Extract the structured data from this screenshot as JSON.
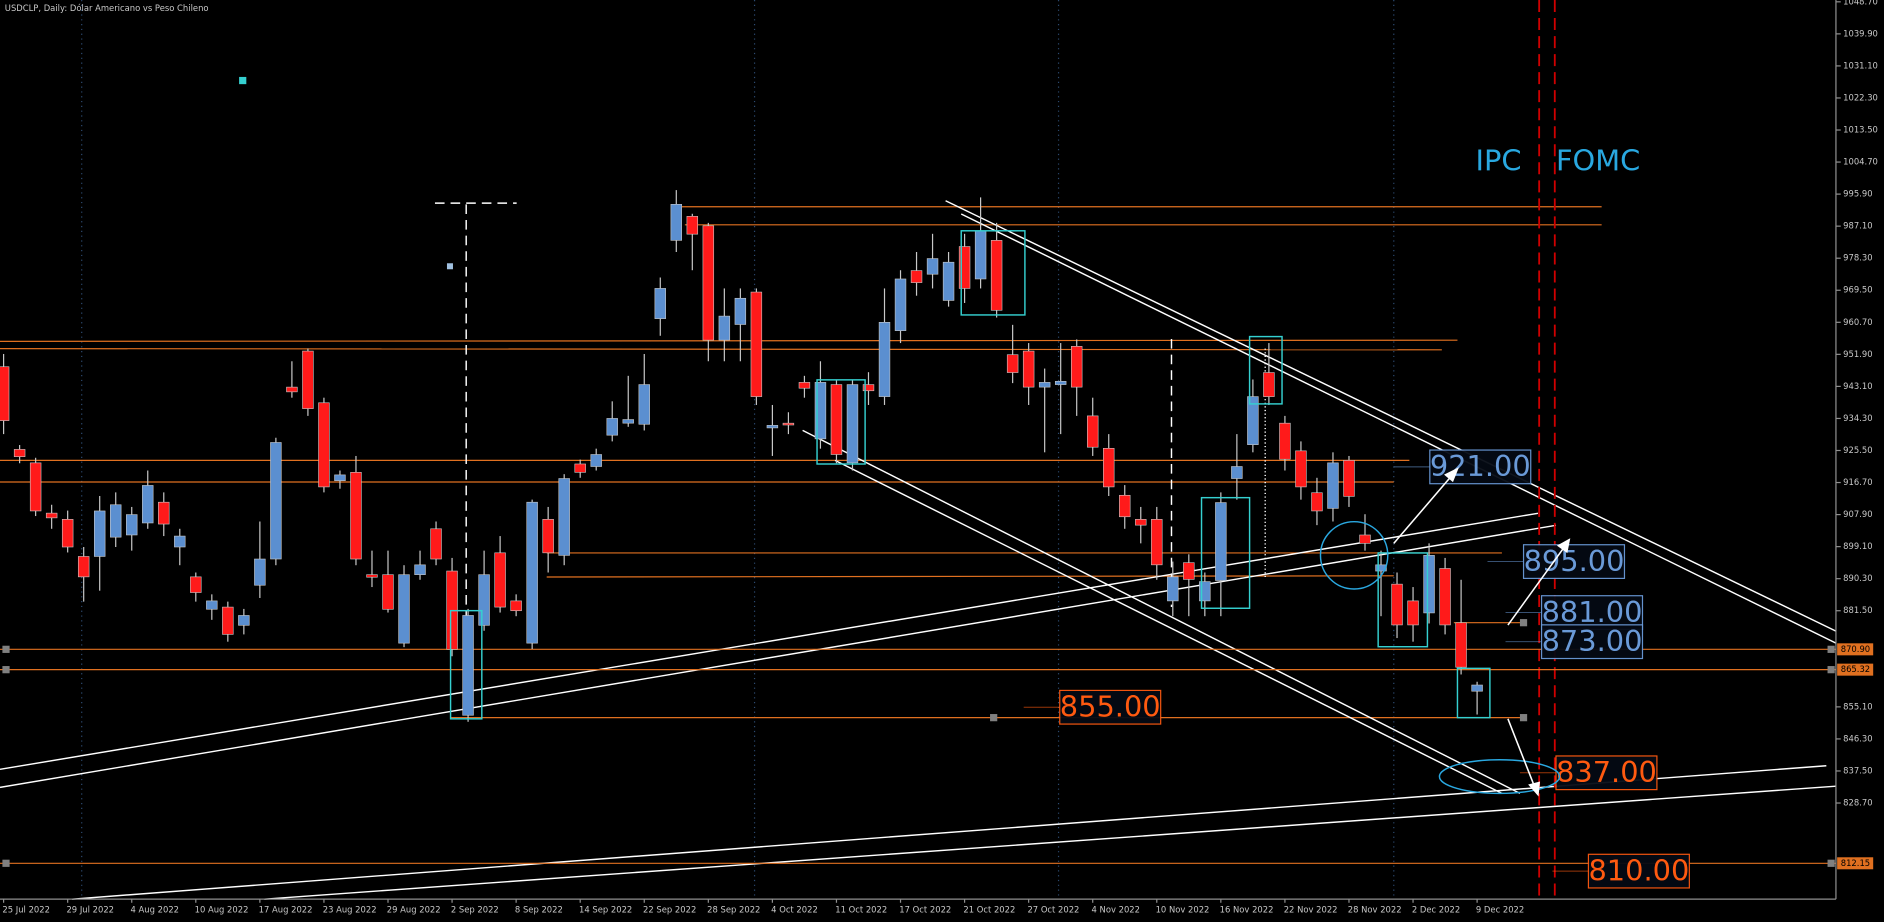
{
  "chart_data": {
    "type": "candlestick",
    "title": "USDCLP, Daily:  Dólar Americano vs Peso Chileno",
    "categories": [
      "25 Jul 2022",
      null,
      null,
      null,
      "29 Jul 2022",
      null,
      null,
      null,
      "4 Aug 2022",
      null,
      null,
      null,
      "10 Aug 2022",
      null,
      null,
      null,
      "17 Aug 2022",
      null,
      null,
      null,
      "23 Aug 2022",
      null,
      null,
      null,
      "29 Aug 2022",
      null,
      null,
      null,
      "2 Sep 2022",
      null,
      null,
      null,
      "8 Sep 2022",
      null,
      null,
      null,
      "14 Sep 2022",
      null,
      null,
      null,
      "22 Sep 2022",
      null,
      null,
      null,
      "28 Sep 2022",
      null,
      null,
      null,
      "4 Oct 2022",
      null,
      null,
      null,
      "11 Oct 2022",
      null,
      null,
      null,
      "17 Oct 2022",
      null,
      null,
      null,
      "21 Oct 2022",
      null,
      null,
      null,
      "27 Oct 2022",
      null,
      null,
      null,
      "4 Nov 2022",
      null,
      null,
      null,
      "10 Nov 2022",
      null,
      null,
      null,
      "16 Nov 2022",
      null,
      null,
      null,
      "22 Nov 2022",
      null,
      null,
      null,
      "28 Nov 2022",
      null,
      null,
      null,
      "2 Dec 2022",
      null,
      null,
      null,
      "9 Dec 2022"
    ],
    "open": [
      948.5,
      925.8,
      922.1,
      908.3,
      906.6,
      896.4,
      896.4,
      901.7,
      902.3,
      905.6,
      911.3,
      899.0,
      890.8,
      881.9,
      882.5,
      877.5,
      888.5,
      895.7,
      942.9,
      952.8,
      938.6,
      917.2,
      919.5,
      891.4,
      891.4,
      872.6,
      891.4,
      904.0,
      892.4,
      852.8,
      877.5,
      897.4,
      884.2,
      872.6,
      906.6,
      896.7,
      921.8,
      921.1,
      929.7,
      933.0,
      932.7,
      961.7,
      983.2,
      989.8,
      987.2,
      955.8,
      960.1,
      969.0,
      931.7,
      933.0,
      944.2,
      928.7,
      943.6,
      922.1,
      943.6,
      940.3,
      958.4,
      974.9,
      973.9,
      966.7,
      981.5,
      972.6,
      983.2,
      951.8,
      952.8,
      942.9,
      943.6,
      954.1,
      935.0,
      926.1,
      913.2,
      906.6,
      906.6,
      884.2,
      894.7,
      884.2,
      889.8,
      917.8,
      927.1,
      946.9,
      933.0,
      925.4,
      913.9,
      909.6,
      922.8,
      902.3,
      892.4,
      888.8,
      884.2,
      880.9,
      893.1,
      878.2,
      859.4
    ],
    "high": [
      952,
      927,
      923.5,
      910.6,
      909,
      899,
      913,
      914,
      910,
      920,
      914,
      904,
      892,
      886,
      884,
      882,
      906,
      929,
      950,
      953.5,
      940,
      920,
      924,
      898,
      898,
      894,
      898,
      906,
      896,
      882,
      898,
      902,
      886,
      912,
      910,
      919,
      923,
      926,
      939,
      946,
      952,
      973,
      997,
      990.5,
      988,
      970,
      970,
      970,
      938,
      936,
      946,
      950,
      945,
      945,
      947,
      970,
      975,
      980,
      985,
      980,
      985,
      995,
      988,
      960,
      955,
      948,
      955,
      956,
      940,
      930,
      916,
      910,
      910,
      895,
      897,
      892,
      914,
      930,
      945,
      955,
      935,
      928,
      918,
      925,
      924,
      908,
      898,
      892,
      888,
      900,
      896,
      890,
      862
    ],
    "low": [
      930,
      922,
      907.5,
      904,
      897.5,
      884,
      887,
      899,
      898,
      904,
      902,
      894,
      884,
      879,
      873,
      875,
      885,
      894,
      940,
      935,
      914,
      915,
      894,
      888,
      881,
      871.5,
      890,
      894,
      869,
      851,
      876,
      881,
      880,
      871,
      892,
      894,
      918,
      920,
      928,
      932,
      931,
      957,
      980,
      975,
      950,
      950,
      950,
      938,
      924,
      930,
      940,
      926,
      922,
      920,
      938,
      938,
      955,
      968,
      970,
      965,
      966,
      970,
      962,
      944,
      938,
      925,
      930,
      935,
      924,
      913,
      904,
      900,
      890,
      880,
      880,
      880,
      880,
      912,
      925,
      938,
      920,
      912,
      905,
      906,
      910,
      898,
      880,
      874,
      873,
      878,
      875,
      864,
      853
    ],
    "close": [
      933.7,
      923.8,
      908.9,
      907.0,
      899.0,
      890.8,
      908.9,
      910.6,
      907.9,
      915.9,
      905.3,
      902.0,
      886.5,
      884.2,
      875.0,
      880.2,
      895.7,
      927.7,
      941.6,
      937.0,
      915.5,
      918.8,
      895.7,
      890.7,
      881.9,
      891.4,
      894.1,
      895.7,
      870.9,
      880.2,
      891.4,
      882.5,
      881.5,
      911.3,
      897.4,
      917.8,
      919.5,
      924.4,
      934.3,
      934.0,
      943.6,
      970.0,
      993.1,
      984.9,
      955.8,
      962.4,
      967.3,
      940.3,
      932.4,
      932.5,
      942.6,
      944.2,
      924.4,
      943.6,
      941.9,
      960.7,
      972.6,
      971.6,
      978.2,
      977.2,
      970.0,
      985.8,
      964.0,
      946.9,
      942.9,
      944.2,
      944.5,
      942.9,
      926.4,
      915.5,
      907.3,
      905.0,
      894.1,
      890.8,
      890.1,
      889.5,
      911.2,
      921.1,
      940.3,
      940.3,
      923.1,
      915.5,
      908.9,
      922.1,
      912.9,
      900.0,
      894.1,
      877.6,
      877.6,
      896.7,
      877.6,
      866.0,
      861.1
    ],
    "up_color": "#5b8fd0",
    "down_color": "#ff1a1a",
    "ylim": [
      802.3,
      1049.2
    ],
    "yticks": [
      {
        "value": 1048.7,
        "label": "1048.70"
      },
      {
        "value": 1039.9,
        "label": "1039.90"
      },
      {
        "value": 1031.1,
        "label": "1031.10"
      },
      {
        "value": 1022.3,
        "label": "1022.30"
      },
      {
        "value": 1013.5,
        "label": "1013.50"
      },
      {
        "value": 1004.7,
        "label": "1004.70"
      },
      {
        "value": 995.9,
        "label": "995.90"
      },
      {
        "value": 987.1,
        "label": "987.10"
      },
      {
        "value": 978.3,
        "label": "978.30"
      },
      {
        "value": 969.5,
        "label": "969.50"
      },
      {
        "value": 960.7,
        "label": "960.70"
      },
      {
        "value": 951.9,
        "label": "951.90"
      },
      {
        "value": 943.1,
        "label": "943.10"
      },
      {
        "value": 934.3,
        "label": "934.30"
      },
      {
        "value": 925.5,
        "label": "925.50"
      },
      {
        "value": 916.7,
        "label": "916.70"
      },
      {
        "value": 907.9,
        "label": "907.90"
      },
      {
        "value": 899.1,
        "label": "899.10"
      },
      {
        "value": 890.3,
        "label": "890.30"
      },
      {
        "value": 881.5,
        "label": "881.50"
      },
      {
        "value": 855.1,
        "label": "855.10"
      },
      {
        "value": 846.3,
        "label": "846.30"
      },
      {
        "value": 837.5,
        "label": "837.50"
      },
      {
        "value": 828.7,
        "label": "828.70"
      }
    ],
    "levels": [
      {
        "value": 870.9,
        "label": "870.90"
      },
      {
        "value": 865.32,
        "label": "865.32"
      },
      {
        "value": 812.15,
        "label": "812.15"
      }
    ],
    "level_color": "#e07020",
    "annotations": [
      {
        "value": 921,
        "label": "921.00",
        "color": "#6a9ad8"
      },
      {
        "value": 895,
        "label": "895.00",
        "color": "#6a9ad8"
      },
      {
        "value": 881,
        "label": "881.00",
        "color": "#6a9ad8"
      },
      {
        "value": 873,
        "label": "873.00",
        "color": "#6a9ad8"
      },
      {
        "value": 855,
        "label": "855.00",
        "color": "#ff5a10"
      },
      {
        "value": 837,
        "label": "837.00",
        "color": "#ff5a10"
      },
      {
        "value": 810,
        "label": "810.00",
        "color": "#ff5a10"
      }
    ],
    "events": [
      "IPC",
      "FOMC"
    ]
  }
}
